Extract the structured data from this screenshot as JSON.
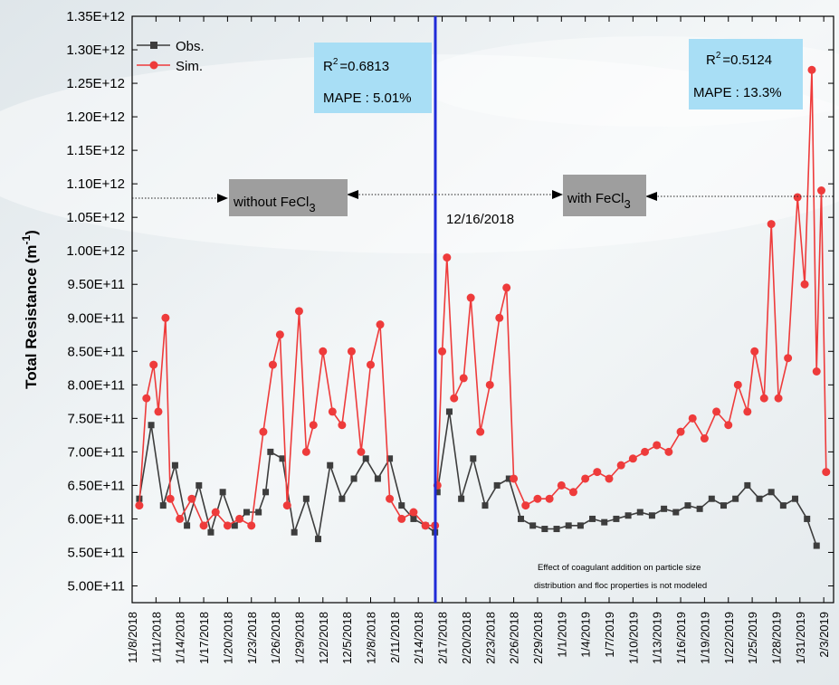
{
  "chart_data": {
    "type": "line",
    "ylabel_main": "Total Resistance (m",
    "ylabel_sup": "-1",
    "ylabel_end": ")",
    "y_ticks": [
      "5.00E+11",
      "5.50E+11",
      "6.00E+11",
      "6.50E+11",
      "7.00E+11",
      "7.50E+11",
      "8.00E+11",
      "8.50E+11",
      "9.00E+11",
      "9.50E+11",
      "1.00E+12",
      "1.05E+12",
      "1.10E+12",
      "1.15E+12",
      "1.20E+12",
      "1.25E+12",
      "1.30E+12",
      "1.35E+12"
    ],
    "ylim": [
      475000000000.0,
      1350000000000.0
    ],
    "x_ticks": [
      "11/8/2018",
      "1/11/2018",
      "1/14/2018",
      "1/17/2018",
      "1/20/2018",
      "1/23/2018",
      "1/26/2018",
      "1/29/2018",
      "12/2/2018",
      "12/5/2018",
      "12/8/2018",
      "2/11/2018",
      "2/14/2018",
      "2/17/2018",
      "2/20/2018",
      "2/23/2018",
      "2/26/2018",
      "2/29/2018",
      "1/1/2019",
      "1/4/2019",
      "1/7/2019",
      "1/10/2019",
      "1/13/2019",
      "1/16/2019",
      "1/19/2019",
      "1/22/2019",
      "1/25/2019",
      "1/28/2019",
      "1/31/2019",
      "2/3/2019"
    ],
    "series": [
      {
        "name": "Obs.",
        "color": "#3d3d3d",
        "marker": "square",
        "segments": [
          [
            [
              0.3,
              630000000000.0
            ],
            [
              0.8,
              740000000000.0
            ],
            [
              1.3,
              620000000000.0
            ],
            [
              1.8,
              680000000000.0
            ],
            [
              2.3,
              590000000000.0
            ],
            [
              2.8,
              650000000000.0
            ],
            [
              3.3,
              580000000000.0
            ],
            [
              3.8,
              640000000000.0
            ],
            [
              4.3,
              590000000000.0
            ],
            [
              4.8,
              610000000000.0
            ],
            [
              5.3,
              610000000000.0
            ],
            [
              5.6,
              640000000000.0
            ],
            [
              5.8,
              700000000000.0
            ],
            [
              6.3,
              690000000000.0
            ],
            [
              6.8,
              580000000000.0
            ],
            [
              7.3,
              630000000000.0
            ],
            [
              7.8,
              570000000000.0
            ],
            [
              8.3,
              680000000000.0
            ],
            [
              8.8,
              630000000000.0
            ],
            [
              9.3,
              660000000000.0
            ],
            [
              9.8,
              690000000000.0
            ],
            [
              10.3,
              660000000000.0
            ],
            [
              10.8,
              690000000000.0
            ],
            [
              11.3,
              620000000000.0
            ],
            [
              11.8,
              600000000000.0
            ],
            [
              12.3,
              590000000000.0
            ],
            [
              12.7,
              580000000000.0
            ]
          ],
          [
            [
              12.8,
              640000000000.0
            ],
            [
              13.3,
              760000000000.0
            ],
            [
              13.8,
              630000000000.0
            ],
            [
              14.3,
              690000000000.0
            ],
            [
              14.8,
              620000000000.0
            ],
            [
              15.3,
              650000000000.0
            ],
            [
              15.8,
              660000000000.0
            ],
            [
              16.3,
              600000000000.0
            ],
            [
              16.8,
              590000000000.0
            ],
            [
              17.3,
              585000000000.0
            ],
            [
              17.8,
              585000000000.0
            ],
            [
              18.3,
              590000000000.0
            ],
            [
              18.8,
              590000000000.0
            ],
            [
              19.3,
              600000000000.0
            ],
            [
              19.8,
              595000000000.0
            ],
            [
              20.3,
              600000000000.0
            ],
            [
              20.8,
              605000000000.0
            ],
            [
              21.3,
              610000000000.0
            ],
            [
              21.8,
              605000000000.0
            ],
            [
              22.3,
              615000000000.0
            ],
            [
              22.8,
              610000000000.0
            ],
            [
              23.3,
              620000000000.0
            ],
            [
              23.8,
              615000000000.0
            ],
            [
              24.3,
              630000000000.0
            ],
            [
              24.8,
              620000000000.0
            ],
            [
              25.3,
              630000000000.0
            ],
            [
              25.8,
              650000000000.0
            ],
            [
              26.3,
              630000000000.0
            ],
            [
              26.8,
              640000000000.0
            ],
            [
              27.3,
              620000000000.0
            ],
            [
              27.8,
              630000000000.0
            ],
            [
              28.3,
              600000000000.0
            ],
            [
              28.7,
              560000000000.0
            ]
          ]
        ]
      },
      {
        "name": "Sim.",
        "color": "#ee3b3b",
        "marker": "circle",
        "segments": [
          [
            [
              0.3,
              620000000000.0
            ],
            [
              0.6,
              780000000000.0
            ],
            [
              0.9,
              830000000000.0
            ],
            [
              1.1,
              760000000000.0
            ],
            [
              1.4,
              900000000000.0
            ],
            [
              1.6,
              630000000000.0
            ],
            [
              2.0,
              600000000000.0
            ],
            [
              2.5,
              630000000000.0
            ],
            [
              3.0,
              590000000000.0
            ],
            [
              3.5,
              610000000000.0
            ],
            [
              4.0,
              590000000000.0
            ],
            [
              4.5,
              600000000000.0
            ],
            [
              5.0,
              590000000000.0
            ],
            [
              5.5,
              730000000000.0
            ],
            [
              5.9,
              830000000000.0
            ],
            [
              6.2,
              875000000000.0
            ],
            [
              6.5,
              620000000000.0
            ],
            [
              7.0,
              910000000000.0
            ],
            [
              7.3,
              700000000000.0
            ],
            [
              7.6,
              740000000000.0
            ],
            [
              8.0,
              850000000000.0
            ],
            [
              8.4,
              760000000000.0
            ],
            [
              8.8,
              740000000000.0
            ],
            [
              9.2,
              850000000000.0
            ],
            [
              9.6,
              700000000000.0
            ],
            [
              10.0,
              830000000000.0
            ],
            [
              10.4,
              890000000000.0
            ],
            [
              10.8,
              630000000000.0
            ],
            [
              11.3,
              600000000000.0
            ],
            [
              11.8,
              610000000000.0
            ],
            [
              12.3,
              590000000000.0
            ],
            [
              12.7,
              590000000000.0
            ]
          ],
          [
            [
              12.8,
              650000000000.0
            ],
            [
              13.0,
              850000000000.0
            ],
            [
              13.2,
              990000000000.0
            ],
            [
              13.5,
              780000000000.0
            ],
            [
              13.9,
              810000000000.0
            ],
            [
              14.2,
              930000000000.0
            ],
            [
              14.6,
              730000000000.0
            ],
            [
              15.0,
              800000000000.0
            ],
            [
              15.4,
              900000000000.0
            ],
            [
              15.7,
              945000000000.0
            ],
            [
              16.0,
              660000000000.0
            ],
            [
              16.5,
              620000000000.0
            ],
            [
              17.0,
              630000000000.0
            ],
            [
              17.5,
              630000000000.0
            ],
            [
              18.0,
              650000000000.0
            ],
            [
              18.5,
              640000000000.0
            ],
            [
              19.0,
              660000000000.0
            ],
            [
              19.5,
              670000000000.0
            ],
            [
              20.0,
              660000000000.0
            ],
            [
              20.5,
              680000000000.0
            ],
            [
              21.0,
              690000000000.0
            ],
            [
              21.5,
              700000000000.0
            ],
            [
              22.0,
              710000000000.0
            ],
            [
              22.5,
              700000000000.0
            ],
            [
              23.0,
              730000000000.0
            ],
            [
              23.5,
              750000000000.0
            ],
            [
              24.0,
              720000000000.0
            ],
            [
              24.5,
              760000000000.0
            ],
            [
              25.0,
              740000000000.0
            ],
            [
              25.4,
              800000000000.0
            ],
            [
              25.8,
              760000000000.0
            ],
            [
              26.1,
              850000000000.0
            ],
            [
              26.5,
              780000000000.0
            ],
            [
              26.8,
              1040000000000.0
            ],
            [
              27.1,
              780000000000.0
            ],
            [
              27.5,
              840000000000.0
            ],
            [
              27.9,
              1080000000000.0
            ],
            [
              28.2,
              950000000000.0
            ],
            [
              28.5,
              1270000000000.0
            ],
            [
              28.7,
              820000000000.0
            ],
            [
              28.9,
              1090000000000.0
            ],
            [
              29.1,
              670000000000.0
            ]
          ]
        ]
      }
    ]
  },
  "legend": {
    "obs": "Obs.",
    "sim": "Sim."
  },
  "annotations": {
    "left_box_r2": "=0.6813",
    "left_box_mape": "MAPE : 5.01%",
    "right_box_r2": "=0.5124",
    "right_box_mape": "MAPE : 13.3%",
    "r_letter": "R",
    "r_sup": "2",
    "without_label": "without FeCl",
    "with_label": "with FeCl",
    "sub3": "3",
    "date_marker": "12/16/2018",
    "note_line1": "Effect of coagulant addition on particle size",
    "note_line2": "distribution and floc properties is not modeled"
  },
  "colors": {
    "obs": "#3d3d3d",
    "sim": "#ee3b3b",
    "divider": "#1f2bd8",
    "blue_box": "#a8def5",
    "gray_box": "#9e9e9e"
  }
}
